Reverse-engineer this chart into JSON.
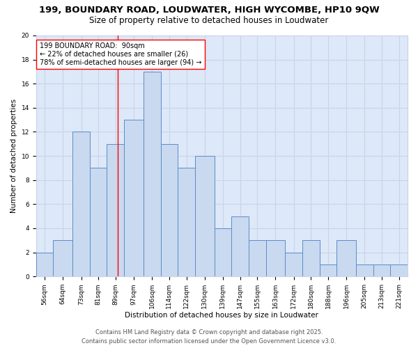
{
  "title": "199, BOUNDARY ROAD, LOUDWATER, HIGH WYCOMBE, HP10 9QW",
  "subtitle": "Size of property relative to detached houses in Loudwater",
  "xlabel": "Distribution of detached houses by size in Loudwater",
  "ylabel": "Number of detached properties",
  "bar_labels": [
    "56sqm",
    "64sqm",
    "73sqm",
    "81sqm",
    "89sqm",
    "97sqm",
    "106sqm",
    "114sqm",
    "122sqm",
    "130sqm",
    "139sqm",
    "147sqm",
    "155sqm",
    "163sqm",
    "172sqm",
    "180sqm",
    "188sqm",
    "196sqm",
    "205sqm",
    "213sqm",
    "221sqm"
  ],
  "bar_heights": [
    2,
    3,
    12,
    9,
    11,
    13,
    17,
    11,
    9,
    10,
    4,
    5,
    3,
    3,
    2,
    3,
    1,
    3,
    1,
    1,
    1
  ],
  "bar_edges": [
    52,
    60,
    69,
    77,
    85,
    93,
    102,
    110,
    118,
    126,
    135,
    143,
    151,
    159,
    168,
    176,
    184,
    192,
    201,
    209,
    217,
    225
  ],
  "bar_color": "#c9d9f0",
  "bar_edgecolor": "#5b8cc8",
  "red_line_x": 90,
  "annotation_line1": "199 BOUNDARY ROAD:  90sqm",
  "annotation_line2": "← 22% of detached houses are smaller (26)",
  "annotation_line3": "78% of semi-detached houses are larger (94) →",
  "ylim": [
    0,
    20
  ],
  "yticks": [
    0,
    2,
    4,
    6,
    8,
    10,
    12,
    14,
    16,
    18,
    20
  ],
  "grid_color": "#c8d4e8",
  "background_color": "#dde8f8",
  "footer_line1": "Contains HM Land Registry data © Crown copyright and database right 2025.",
  "footer_line2": "Contains public sector information licensed under the Open Government Licence v3.0.",
  "title_fontsize": 9.5,
  "subtitle_fontsize": 8.5,
  "axis_label_fontsize": 7.5,
  "tick_fontsize": 6.5,
  "annotation_fontsize": 7,
  "footer_fontsize": 6
}
